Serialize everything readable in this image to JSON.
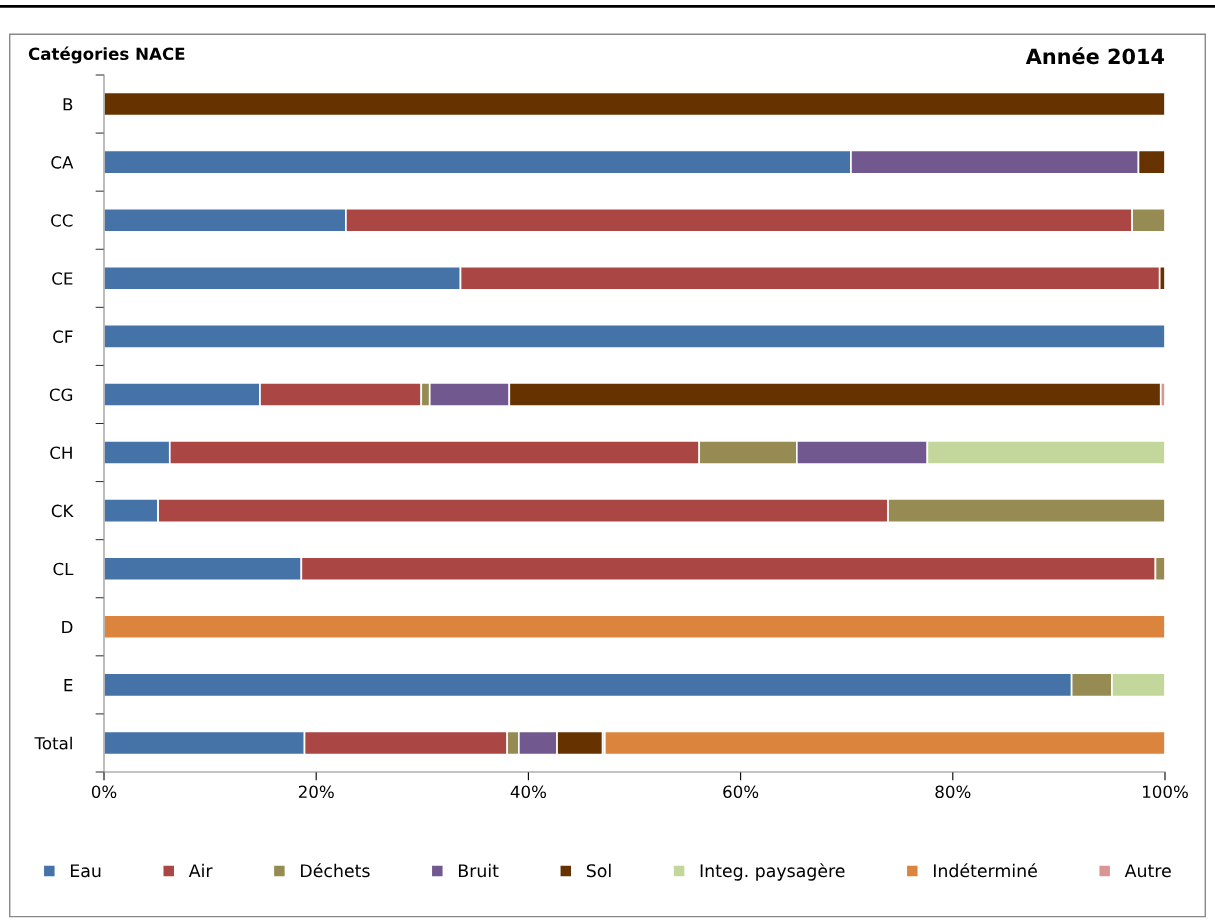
{
  "chart_data": {
    "type": "bar",
    "orientation": "horizontal",
    "stacked": true,
    "title": "Année 2014",
    "ylabel": "Catégories NACE",
    "categories": [
      "B",
      "CA",
      "CC",
      "CE",
      "CF",
      "CG",
      "CH",
      "CK",
      "CL",
      "D",
      "E",
      "Total"
    ],
    "series": [
      {
        "name": "Eau",
        "color": "#4572a7",
        "values": [
          null,
          70.4,
          22.8,
          33.6,
          100,
          14.7,
          6.2,
          5.1,
          18.6,
          null,
          91.2,
          18.9
        ]
      },
      {
        "name": "Air",
        "color": "#aa4643",
        "values": [
          null,
          null,
          74.1,
          65.9,
          null,
          15.2,
          49.9,
          68.8,
          80.5,
          null,
          null,
          19.1
        ]
      },
      {
        "name": "Déchets",
        "color": "#968b53",
        "values": [
          null,
          null,
          3.1,
          null,
          null,
          0.8,
          9.2,
          26.1,
          0.9,
          null,
          3.8,
          1.1
        ]
      },
      {
        "name": "Bruit",
        "color": "#71588f",
        "values": [
          null,
          27.1,
          null,
          null,
          null,
          7.5,
          12.3,
          null,
          null,
          null,
          null,
          3.6
        ]
      },
      {
        "name": "Sol",
        "color": "#663300",
        "values": [
          100,
          2.5,
          null,
          0.5,
          null,
          61.4,
          null,
          null,
          null,
          null,
          null,
          4.3
        ]
      },
      {
        "name": "Integ. paysagère",
        "color": "#c3d69b",
        "values": [
          null,
          null,
          null,
          null,
          null,
          null,
          22.4,
          null,
          null,
          null,
          5.0,
          0.2
        ]
      },
      {
        "name": "Indéterminé",
        "color": "#db843d",
        "values": [
          null,
          null,
          null,
          null,
          null,
          null,
          null,
          null,
          null,
          100,
          null,
          52.8
        ]
      },
      {
        "name": "Autre",
        "color": "#d99694",
        "values": [
          null,
          null,
          null,
          null,
          null,
          0.4,
          null,
          null,
          null,
          null,
          null,
          null
        ]
      }
    ],
    "xlim": [
      0,
      100
    ],
    "xticks": [
      {
        "value": 0,
        "label": "0%"
      },
      {
        "value": 20,
        "label": "20%"
      },
      {
        "value": 40,
        "label": "40%"
      },
      {
        "value": 60,
        "label": "60%"
      },
      {
        "value": 80,
        "label": "80%"
      },
      {
        "value": 100,
        "label": "100%"
      }
    ],
    "grid": false,
    "legend": "bottom"
  }
}
